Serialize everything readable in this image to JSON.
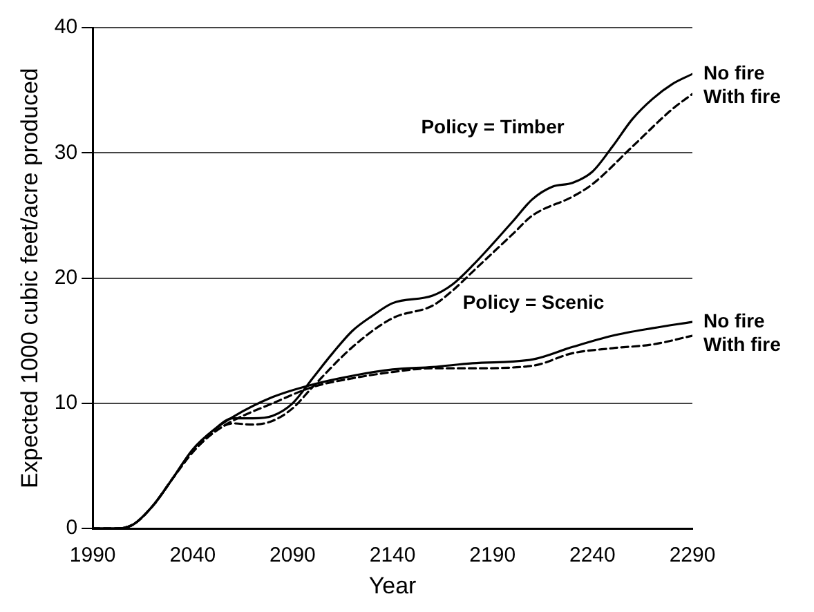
{
  "chart_data": {
    "type": "line",
    "xlabel": "Year",
    "ylabel": "Expected 1000 cubic feet/acre produced",
    "xlim": [
      1990,
      2290
    ],
    "xticks": [
      1990,
      2040,
      2090,
      2140,
      2190,
      2240,
      2290
    ],
    "ylim": [
      0,
      40
    ],
    "yticks": [
      0,
      10,
      20,
      30,
      40
    ],
    "grid": "y",
    "legend": false,
    "marker": "none",
    "annotations": [
      "Policy = Timber",
      "Policy = Scenic"
    ],
    "series": [
      {
        "name": "No fire",
        "color": "#000000",
        "line_style": "solid",
        "x": [
          1990,
          2000,
          2010,
          2020,
          2030,
          2040,
          2050,
          2060,
          2070,
          2080,
          2090,
          2100,
          2110,
          2120,
          2130,
          2140,
          2160,
          2170,
          2180,
          2200,
          2210,
          2220,
          2230,
          2240,
          2250,
          2260,
          2270,
          2280,
          2290
        ],
        "values": [
          0,
          0,
          0.3,
          1.8,
          4,
          6.3,
          7.8,
          8.8,
          8.8,
          9,
          10,
          12,
          14,
          15.8,
          17,
          18,
          18.6,
          19.5,
          21,
          24.5,
          26.3,
          27.3,
          27.6,
          28.5,
          30.5,
          32.7,
          34.3,
          35.5,
          36.3
        ]
      },
      {
        "name": "With fire",
        "color": "#000000",
        "line_style": "dashed",
        "x": [
          1990,
          2000,
          2010,
          2020,
          2030,
          2040,
          2050,
          2060,
          2070,
          2080,
          2090,
          2100,
          2120,
          2140,
          2160,
          2170,
          2180,
          2200,
          2210,
          2230,
          2240,
          2260,
          2280,
          2290
        ],
        "values": [
          0,
          0,
          0.3,
          1.8,
          4,
          6.1,
          7.6,
          8.4,
          8.3,
          8.6,
          9.6,
          11.3,
          14.5,
          16.8,
          17.8,
          19,
          20.5,
          23.5,
          25,
          26.5,
          27.5,
          30.5,
          33.5,
          34.7
        ]
      },
      {
        "name": "No fire",
        "color": "#000000",
        "line_style": "solid",
        "x": [
          1990,
          2000,
          2010,
          2020,
          2030,
          2040,
          2050,
          2060,
          2080,
          2100,
          2120,
          2140,
          2160,
          2180,
          2210,
          2230,
          2250,
          2270,
          2290
        ],
        "values": [
          0,
          0,
          0.3,
          1.8,
          4,
          6.3,
          7.8,
          8.9,
          10.5,
          11.5,
          12.2,
          12.7,
          12.9,
          13.2,
          13.5,
          14.5,
          15.4,
          16,
          16.5
        ]
      },
      {
        "name": "With fire",
        "color": "#000000",
        "line_style": "dashed",
        "x": [
          1990,
          2000,
          2010,
          2020,
          2030,
          2040,
          2050,
          2060,
          2080,
          2100,
          2120,
          2140,
          2160,
          2180,
          2210,
          2230,
          2250,
          2270,
          2290
        ],
        "values": [
          0,
          0,
          0.3,
          1.8,
          4,
          6.1,
          7.6,
          8.6,
          10,
          11.3,
          12,
          12.5,
          12.8,
          12.8,
          13,
          14,
          14.4,
          14.7,
          15.4
        ]
      }
    ]
  }
}
